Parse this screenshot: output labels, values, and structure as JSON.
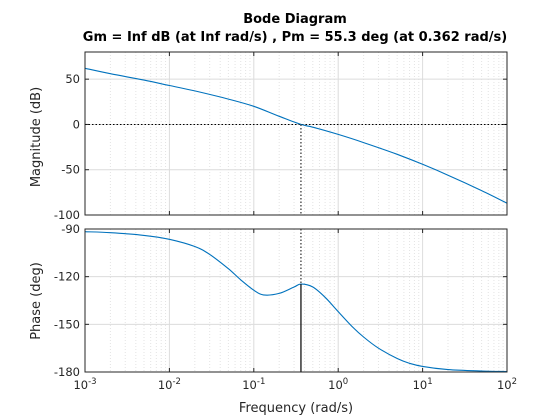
{
  "chart_data": {
    "type": "line",
    "title": "Bode Diagram",
    "subtitle": "Gm = Inf dB (at Inf rad/s) ,  Pm = 55.3 deg (at 0.362 rad/s)",
    "xlabel": "Frequency  (rad/s)",
    "xscale": "log",
    "xlim": [
      0.001,
      100
    ],
    "x_tick_labels": [
      "10^-3",
      "10^-2",
      "10^-1",
      "10^0",
      "10^1",
      "10^2"
    ],
    "grid": true,
    "margins": {
      "gain_crossover_frequency": 0.362,
      "phase_margin_deg": 55.3
    },
    "subplots": [
      {
        "name": "magnitude",
        "ylabel": "Magnitude (dB)",
        "ylim": [
          -100,
          80
        ],
        "yticks": [
          -100,
          -50,
          0,
          50
        ],
        "x": [
          0.001,
          0.002,
          0.005,
          0.01,
          0.02,
          0.05,
          0.1,
          0.2,
          0.362,
          0.5,
          1,
          2,
          5,
          10,
          20,
          50,
          100
        ],
        "y": [
          62,
          56,
          49,
          43,
          37,
          28,
          20,
          9,
          0,
          -3,
          -11,
          -20,
          -33,
          -44,
          -56,
          -73,
          -87
        ]
      },
      {
        "name": "phase",
        "ylabel": "Phase (deg)",
        "ylim": [
          -180,
          -90
        ],
        "yticks": [
          -180,
          -150,
          -120,
          -90
        ],
        "x": [
          0.001,
          0.002,
          0.005,
          0.01,
          0.02,
          0.03,
          0.05,
          0.07,
          0.1,
          0.13,
          0.2,
          0.3,
          0.362,
          0.5,
          0.7,
          1,
          1.5,
          2,
          3,
          5,
          7,
          10,
          20,
          50,
          100
        ],
        "y": [
          -91.7,
          -92.3,
          -94,
          -96.5,
          -101,
          -106,
          -115,
          -122,
          -128.5,
          -131.5,
          -130.5,
          -126.5,
          -124.7,
          -126.5,
          -133,
          -142,
          -152,
          -158,
          -165,
          -171.5,
          -174.5,
          -176.5,
          -178.5,
          -179.4,
          -179.7
        ]
      }
    ]
  }
}
